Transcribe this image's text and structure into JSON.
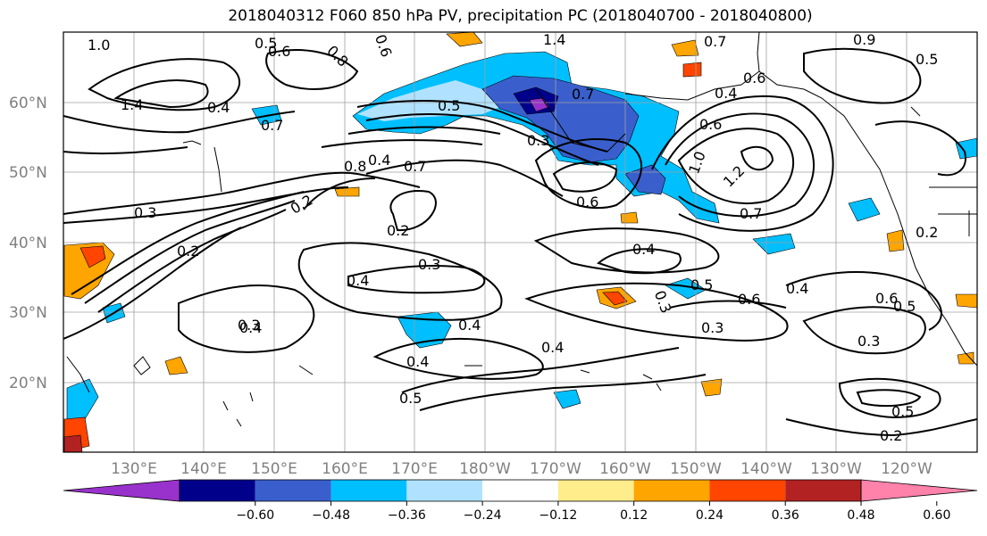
{
  "title": "2018040312 F060 850 hPa PV, precipitation PC (2018040700 - 2018040800)",
  "lat_labels": [
    "60°N",
    "50°N",
    "40°N",
    "30°N",
    "20°N"
  ],
  "lon_labels": [
    "130°E",
    "140°E",
    "150°E",
    "160°E",
    "170°E",
    "180°W",
    "170°W",
    "160°W",
    "150°W",
    "140°W",
    "130°W",
    "120°W"
  ],
  "colorbar": {
    "ticks": [
      "−0.60",
      "−0.48",
      "−0.36",
      "−0.24",
      "−0.12",
      "0.12",
      "0.24",
      "0.36",
      "0.48",
      "0.60"
    ],
    "colors": [
      "#9932CC",
      "#00008B",
      "#3A5FCD",
      "#00BFFF",
      "#B0E2FF",
      "#FFFFFF",
      "#FFEC8B",
      "#FFA500",
      "#FF4500",
      "#B22222",
      "#FF82AB"
    ]
  },
  "contour_labels": [
    "1.0",
    "0.5",
    "0.6",
    "0.6",
    "0.8",
    "1.4",
    "0.7",
    "0.9",
    "0.5",
    "0.4",
    "1.4",
    "0.4",
    "0.7",
    "0.5",
    "0.7",
    "0.3",
    "0.6",
    "0.8",
    "0.4",
    "0.6",
    "1.0",
    "1.2",
    "0.7",
    "0.6",
    "0.3",
    "0.2",
    "0.3",
    "0.2",
    "0.4",
    "0.3",
    "0.4",
    "0.4",
    "0.3",
    "0.5",
    "0.6",
    "0.4",
    "0.3",
    "0.6",
    "0.5",
    "0.4",
    "0.4",
    "0.4",
    "0.4",
    "0.3",
    "0.5",
    "0.5",
    "0.2",
    "0.3",
    "0.2"
  ]
}
